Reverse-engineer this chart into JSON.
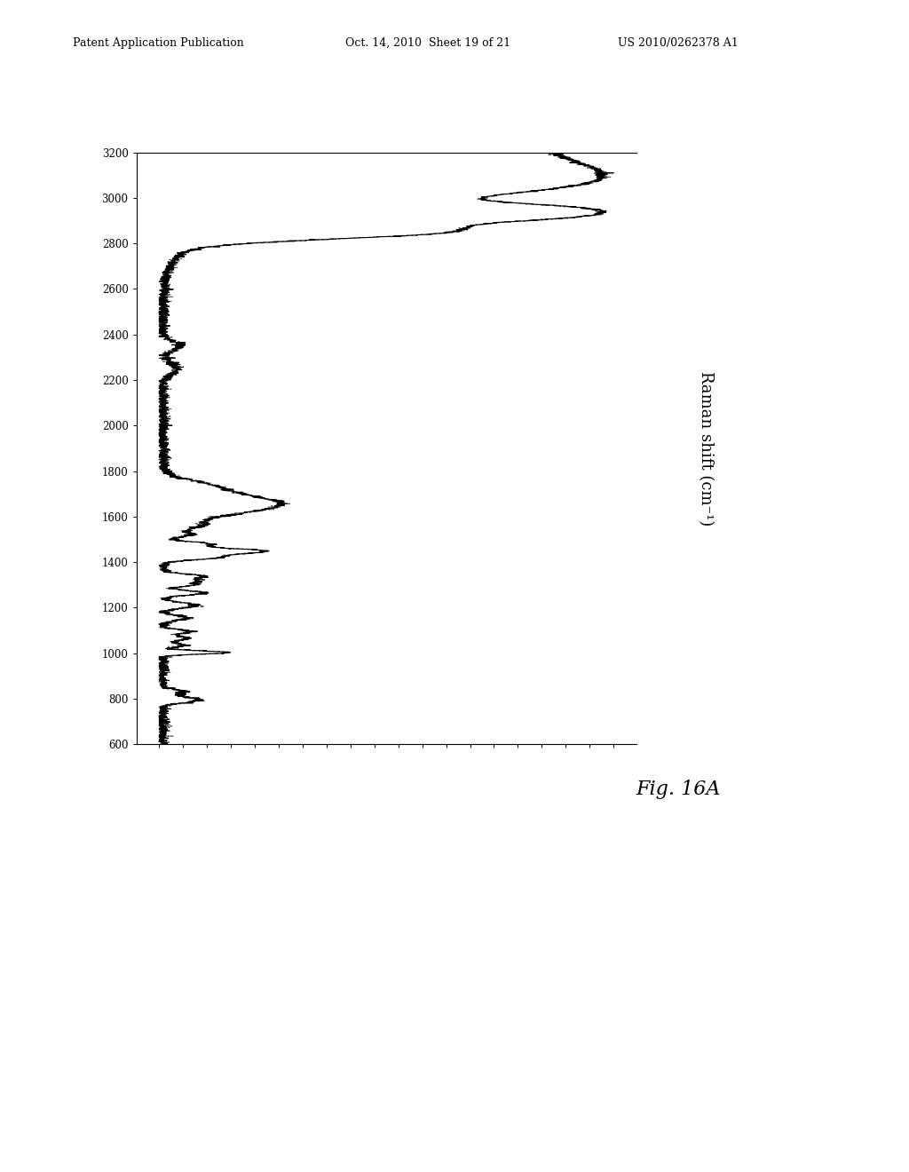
{
  "title": "",
  "xlabel": "Raman shift (cm⁻¹)",
  "ylabel": "",
  "xmin": 600,
  "xmax": 3200,
  "ymin": -0.05,
  "ymax": 1.1,
  "x_ticks": [
    600,
    800,
    1000,
    1200,
    1400,
    1600,
    1800,
    2000,
    2200,
    2400,
    2600,
    2800,
    3000,
    3200
  ],
  "fig_label": "Fig. 16A",
  "header_left": "Patent Application Publication",
  "header_mid": "Oct. 14, 2010  Sheet 19 of 21",
  "header_right": "US 2010/0262378 A1",
  "background_color": "#ffffff",
  "line_color_solid": "#000000",
  "line_color_dashed": "#555555",
  "line_width": 0.8
}
